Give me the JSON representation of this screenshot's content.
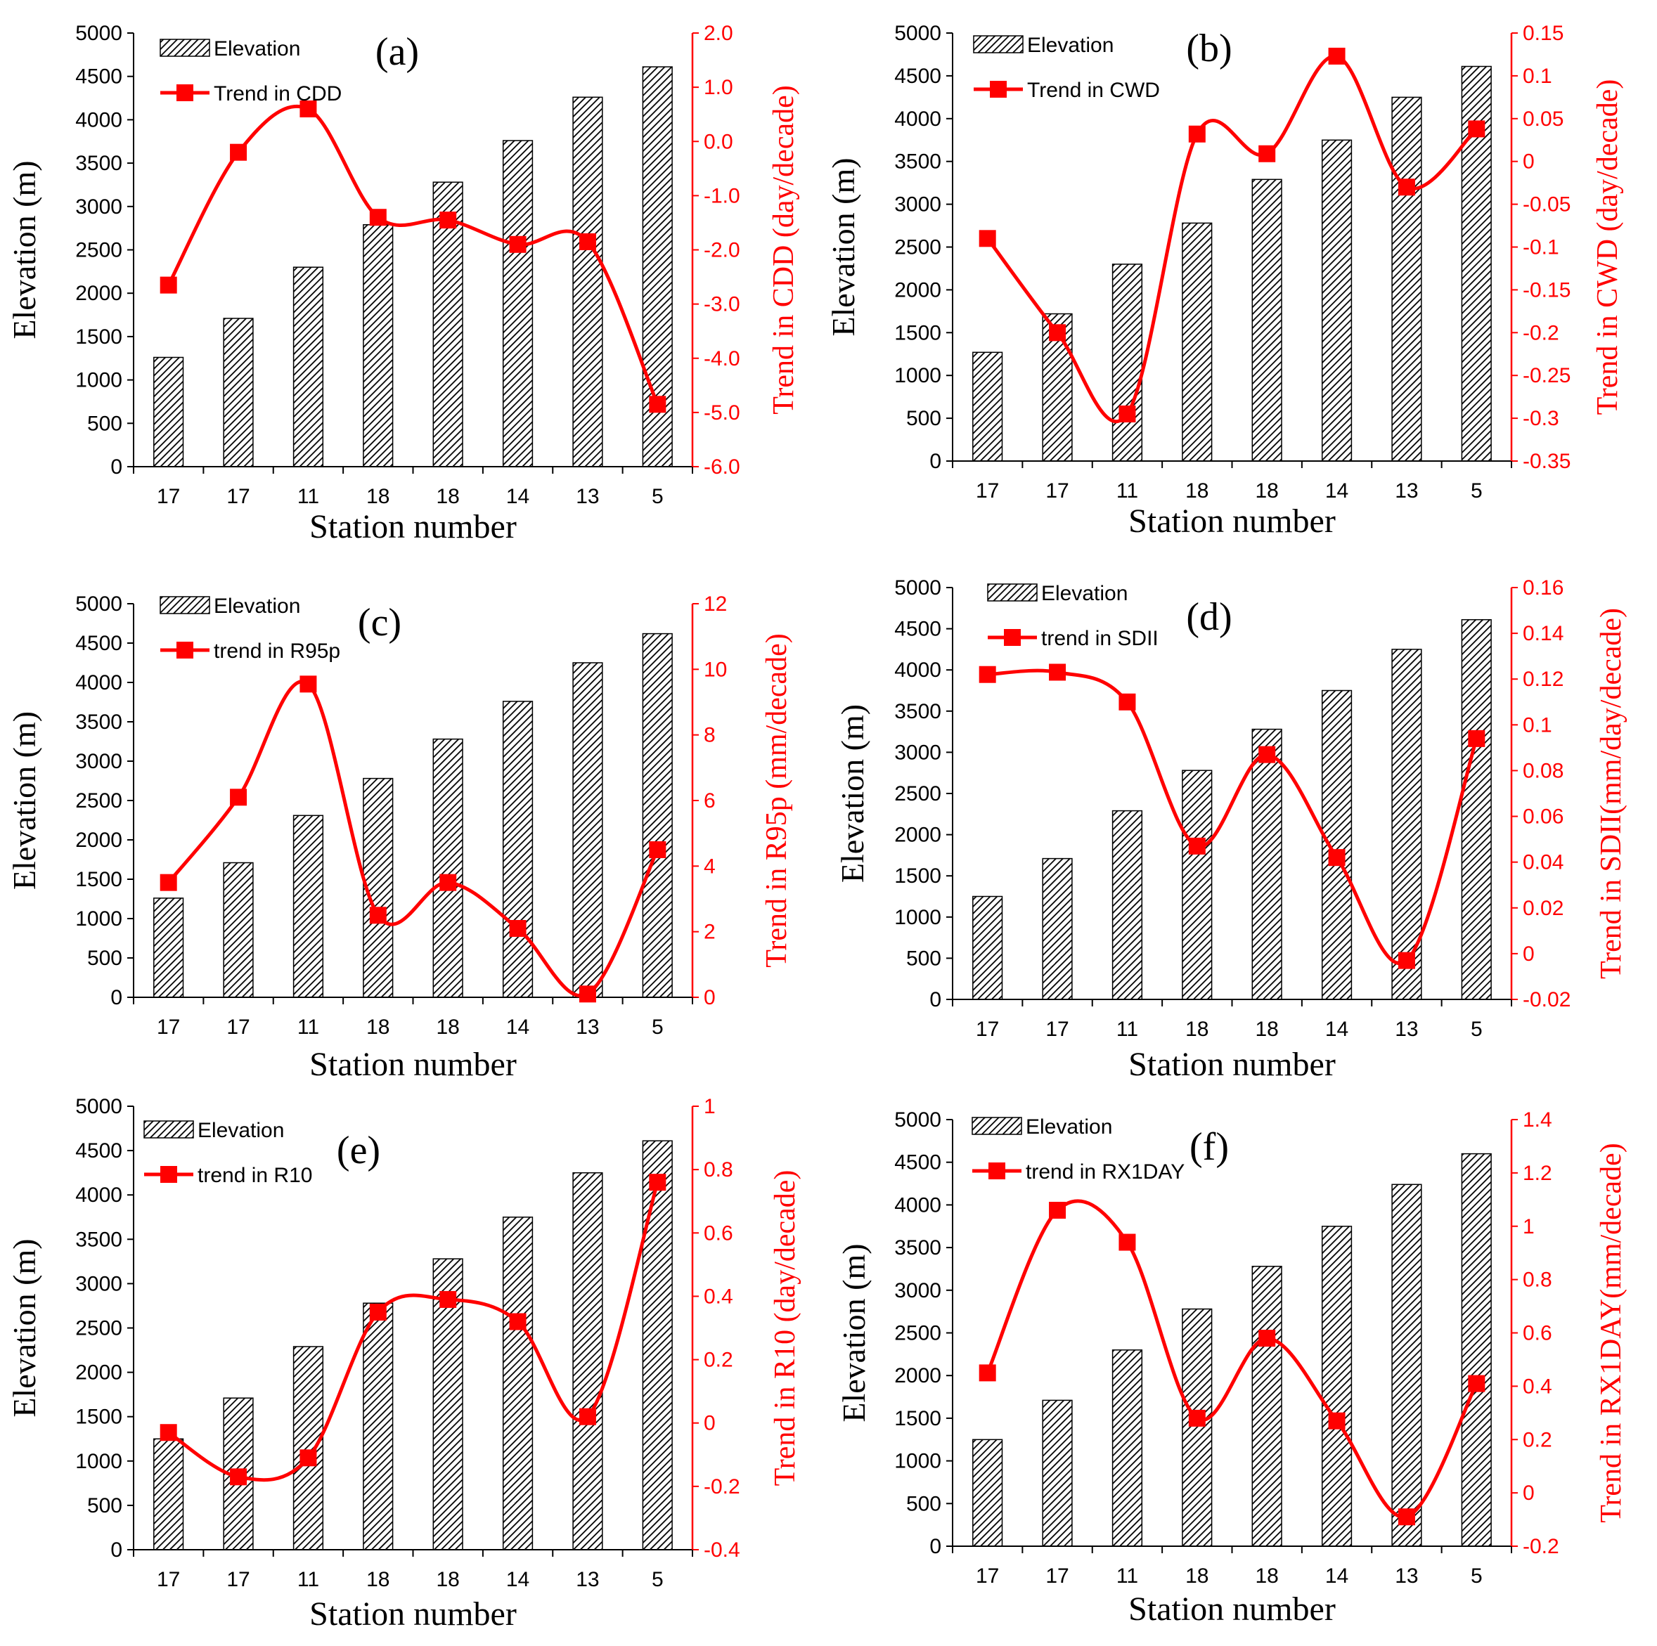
{
  "figure": {
    "xlabel": "Station number"
  },
  "chart_data": [
    {
      "type": "bar+line",
      "panel_label": "(a)",
      "categories": [
        "17",
        "17",
        "11",
        "18",
        "18",
        "14",
        "13",
        "5"
      ],
      "elevation": [
        1260,
        1710,
        2300,
        2790,
        3280,
        3760,
        4260,
        4610
      ],
      "trend": [
        -2.65,
        -0.2,
        0.6,
        -1.4,
        -1.45,
        -1.9,
        -1.85,
        -4.85
      ],
      "xlabel": "Station number",
      "ylabel": "Elevation (m)",
      "y2label": "Trend in CDD (day/decade)",
      "legend": [
        "Elevation",
        "Trend in CDD"
      ],
      "ylim": [
        0,
        5000
      ],
      "yticks": [
        "0",
        "500",
        "1000",
        "1500",
        "2000",
        "2500",
        "3000",
        "3500",
        "4000",
        "4500",
        "5000"
      ],
      "y2lim": [
        -6,
        2
      ],
      "y2ticks": [
        "-6.0",
        "-5.0",
        "-4.0",
        "-3.0",
        "-2.0",
        "-1.0",
        "0.0",
        "1.0",
        "2.0"
      ]
    },
    {
      "type": "bar+line",
      "panel_label": "(b)",
      "categories": [
        "17",
        "17",
        "11",
        "18",
        "18",
        "14",
        "13",
        "5"
      ],
      "elevation": [
        1270,
        1720,
        2300,
        2780,
        3290,
        3750,
        4250,
        4610
      ],
      "trend": [
        -0.09,
        -0.2,
        -0.295,
        0.032,
        0.009,
        0.123,
        -0.03,
        0.038
      ],
      "xlabel": "Station number",
      "ylabel": "Elevation (m)",
      "y2label": "Trend in CWD (day/decade)",
      "legend": [
        "Elevation",
        "Trend in CWD"
      ],
      "ylim": [
        0,
        5000
      ],
      "yticks": [
        "0",
        "500",
        "1000",
        "1500",
        "2000",
        "2500",
        "3000",
        "3500",
        "4000",
        "4500",
        "5000"
      ],
      "y2lim": [
        -0.35,
        0.15
      ],
      "y2ticks": [
        "-0.35",
        "-0.3",
        "-0.25",
        "-0.2",
        "-0.15",
        "-0.1",
        "-0.05",
        "0",
        "0.05",
        "0.1",
        "0.15"
      ]
    },
    {
      "type": "bar+line",
      "panel_label": "(c)",
      "categories": [
        "17",
        "17",
        "11",
        "18",
        "18",
        "14",
        "13",
        "5"
      ],
      "elevation": [
        1260,
        1710,
        2310,
        2780,
        3280,
        3760,
        4250,
        4620
      ],
      "trend": [
        3.5,
        6.1,
        9.55,
        2.5,
        3.5,
        2.1,
        0.1,
        4.5
      ],
      "xlabel": "Station number",
      "ylabel": "Elevation (m)",
      "y2label": "Trend in R95p (mm/decade)",
      "legend": [
        "Elevation",
        "trend in R95p"
      ],
      "ylim": [
        0,
        5000
      ],
      "yticks": [
        "0",
        "500",
        "1000",
        "1500",
        "2000",
        "2500",
        "3000",
        "3500",
        "4000",
        "4500",
        "5000"
      ],
      "y2lim": [
        0,
        12
      ],
      "y2ticks": [
        "0",
        "2",
        "4",
        "6",
        "8",
        "10",
        "12"
      ]
    },
    {
      "type": "bar+line",
      "panel_label": "(d)",
      "categories": [
        "17",
        "17",
        "11",
        "18",
        "18",
        "14",
        "13",
        "5"
      ],
      "elevation": [
        1250,
        1710,
        2290,
        2780,
        3280,
        3750,
        4250,
        4610
      ],
      "trend": [
        0.122,
        0.123,
        0.11,
        0.047,
        0.087,
        0.042,
        -0.003,
        0.094
      ],
      "xlabel": "Station number",
      "ylabel": "Elevation (m)",
      "y2label": "Trend in SDII(mm/day/decade)",
      "legend": [
        "Elevation",
        "trend in SDII"
      ],
      "ylim": [
        0,
        5000
      ],
      "yticks": [
        "0",
        "500",
        "1000",
        "1500",
        "2000",
        "2500",
        "3000",
        "3500",
        "4000",
        "4500",
        "5000"
      ],
      "y2lim": [
        -0.02,
        0.16
      ],
      "y2ticks": [
        "-0.02",
        "0",
        "0.02",
        "0.04",
        "0.06",
        "0.08",
        "0.1",
        "0.12",
        "0.14",
        "0.16"
      ]
    },
    {
      "type": "bar+line",
      "panel_label": "(e)",
      "categories": [
        "17",
        "17",
        "11",
        "18",
        "18",
        "14",
        "13",
        "5"
      ],
      "elevation": [
        1250,
        1710,
        2290,
        2780,
        3280,
        3750,
        4250,
        4610
      ],
      "trend": [
        -0.03,
        -0.17,
        -0.11,
        0.35,
        0.39,
        0.32,
        0.02,
        0.76
      ],
      "xlabel": "Station number",
      "ylabel": "Elevation (m)",
      "y2label": "Trend in R10 (day/decade)",
      "legend": [
        "Elevation",
        "trend in R10"
      ],
      "ylim": [
        0,
        5000
      ],
      "yticks": [
        "0",
        "500",
        "1000",
        "1500",
        "2000",
        "2500",
        "3000",
        "3500",
        "4000",
        "4500",
        "5000"
      ],
      "y2lim": [
        -0.4,
        1
      ],
      "y2ticks": [
        "-0.4",
        "-0.2",
        "0",
        "0.2",
        "0.4",
        "0.6",
        "0.8",
        "1"
      ]
    },
    {
      "type": "bar+line",
      "panel_label": "(f)",
      "categories": [
        "17",
        "17",
        "11",
        "18",
        "18",
        "14",
        "13",
        "5"
      ],
      "elevation": [
        1250,
        1710,
        2300,
        2780,
        3280,
        3750,
        4240,
        4600
      ],
      "trend": [
        0.45,
        1.06,
        0.94,
        0.28,
        0.58,
        0.27,
        -0.09,
        0.41
      ],
      "xlabel": "Station number",
      "ylabel": "Elevation (m)",
      "y2label": "Trend in RX1DAY(mm/decade)",
      "legend": [
        "Elevation",
        "trend in RX1DAY"
      ],
      "ylim": [
        0,
        5000
      ],
      "yticks": [
        "0",
        "500",
        "1000",
        "1500",
        "2000",
        "2500",
        "3000",
        "3500",
        "4000",
        "4500",
        "5000"
      ],
      "y2lim": [
        -0.2,
        1.4
      ],
      "y2ticks": [
        "-0.2",
        "0",
        "0.2",
        "0.4",
        "0.6",
        "0.8",
        "1",
        "1.2",
        "1.4"
      ]
    }
  ],
  "colors": {
    "bar_fill": "#ffffff",
    "bar_hatch": "#000000",
    "trend_line": "#ff0000"
  }
}
